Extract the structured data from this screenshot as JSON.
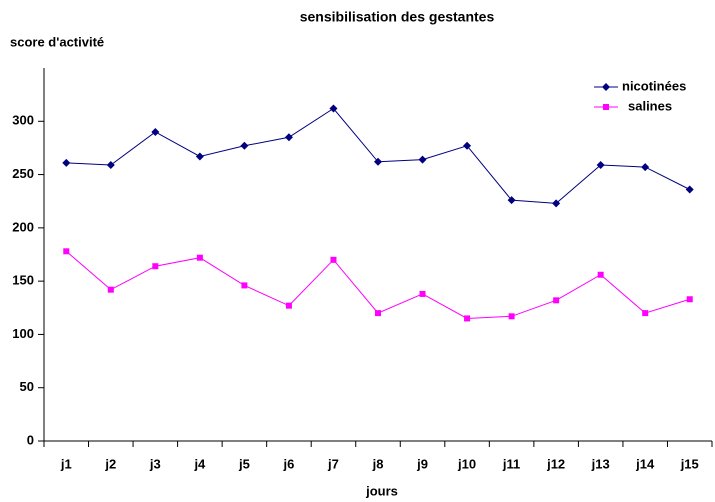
{
  "chart_data": {
    "type": "line",
    "title": "sensibilisation des gestantes",
    "y_label": "score d'activité",
    "x_label": "jours",
    "categories": [
      "j1",
      "j2",
      "j3",
      "j4",
      "j5",
      "j6",
      "j7",
      "j8",
      "j9",
      "j10",
      "j11",
      "j12",
      "j13",
      "j14",
      "j15"
    ],
    "series": [
      {
        "name": "nicotinées",
        "color": "#000080",
        "marker": "diamond",
        "values": [
          261,
          259,
          290,
          267,
          277,
          285,
          312,
          262,
          264,
          277,
          226,
          223,
          259,
          257,
          236
        ]
      },
      {
        "name": "salines",
        "color": "#ff00ff",
        "marker": "square",
        "values": [
          178,
          142,
          164,
          172,
          146,
          127,
          170,
          120,
          138,
          115,
          117,
          132,
          156,
          120,
          133
        ]
      }
    ],
    "ylim": [
      0,
      350
    ],
    "yticks": [
      0,
      50,
      100,
      150,
      200,
      250,
      300
    ],
    "grid": false,
    "legend": "top-right"
  }
}
